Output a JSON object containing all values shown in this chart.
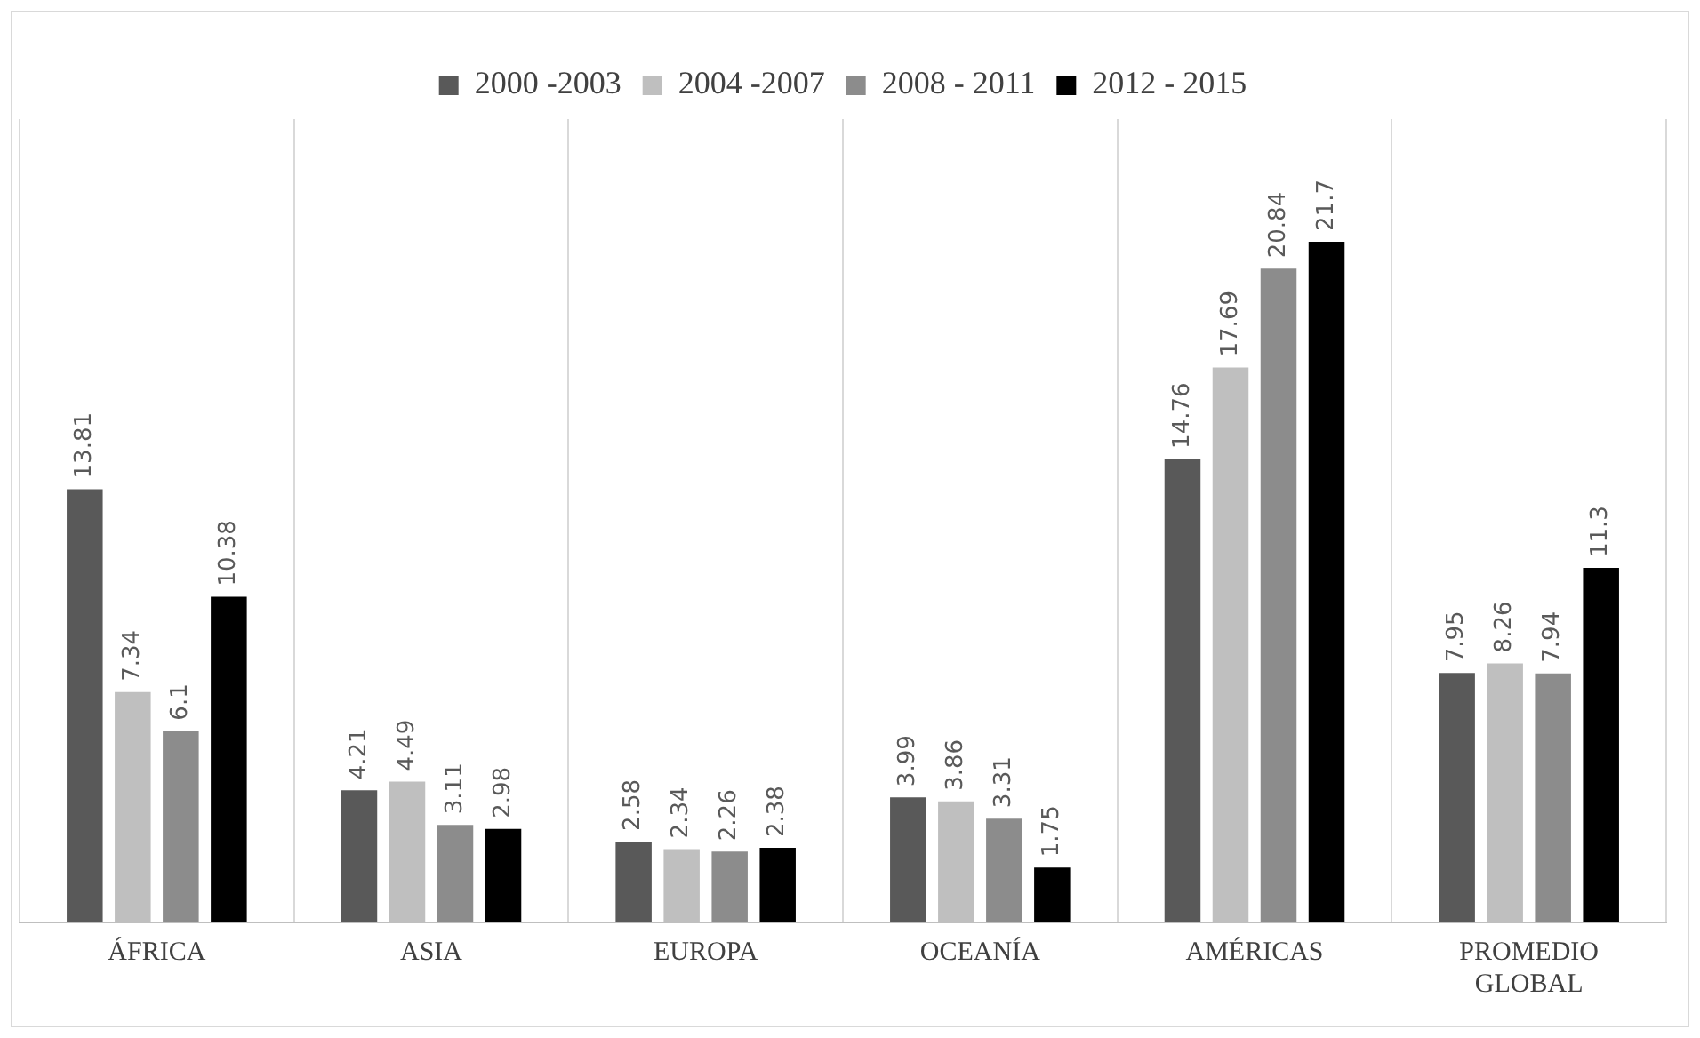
{
  "chart_data": {
    "type": "bar",
    "categories": [
      "ÁFRICA",
      "ASIA",
      "EUROPA",
      "OCEANÍA",
      "AMÉRICAS",
      "PROMEDIO GLOBAL"
    ],
    "series": [
      {
        "name": "2000 -2003",
        "color": "#595959",
        "values": [
          13.81,
          4.21,
          2.58,
          3.99,
          14.76,
          7.95
        ]
      },
      {
        "name": "2004 -2007",
        "color": "#bfbfbf",
        "values": [
          7.34,
          4.49,
          2.34,
          3.86,
          17.69,
          8.26
        ]
      },
      {
        "name": "2008 - 2011",
        "color": "#8c8c8c",
        "values": [
          6.1,
          3.11,
          2.26,
          3.31,
          20.84,
          7.94
        ]
      },
      {
        "name": "2012 - 2015",
        "color": "#000000",
        "values": [
          10.38,
          2.98,
          2.38,
          1.75,
          21.7,
          11.3
        ]
      }
    ],
    "data_labels": true,
    "grid": "x",
    "legend": "top"
  }
}
